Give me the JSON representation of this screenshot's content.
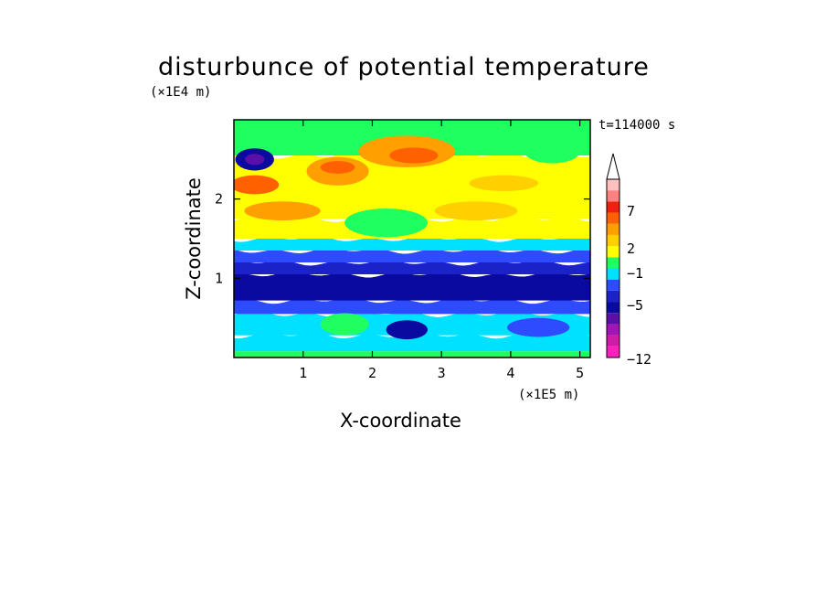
{
  "chart_data": {
    "type": "heatmap",
    "title": "disturbunce of potential temperature",
    "time_label": "t=114000 s",
    "xlabel": "X-coordinate",
    "ylabel": "Z-coordinate",
    "x_unit_label": "(×1E5 m)",
    "y_unit_label": "(×1E4 m)",
    "xlim": [
      0,
      5.15
    ],
    "ylim": [
      0,
      3.0
    ],
    "x_ticks": [
      1,
      2,
      3,
      4,
      5
    ],
    "y_ticks": [
      1,
      2
    ],
    "colorbar": {
      "tick_labels": [
        "7",
        "2",
        "−1",
        "−5",
        "−12"
      ],
      "colors": [
        "#ff1fbf",
        "#d21aa8",
        "#a015b4",
        "#5a0fa8",
        "#0a0aa0",
        "#1a22c8",
        "#2f4bff",
        "#00e0ff",
        "#20ff60",
        "#ffff00",
        "#ffd000",
        "#ffa000",
        "#ff6000",
        "#ee2010",
        "#ff8080",
        "#ffc0c0"
      ],
      "extend": "max"
    },
    "bands": [
      {
        "z0": 0.0,
        "z1": 0.08,
        "level": 8
      },
      {
        "z0": 0.08,
        "z1": 0.28,
        "level": 7
      },
      {
        "z0": 0.28,
        "z1": 0.55,
        "level": 7
      },
      {
        "z0": 0.55,
        "z1": 0.72,
        "level": 6
      },
      {
        "z0": 0.72,
        "z1": 1.05,
        "level": 4
      },
      {
        "z0": 1.05,
        "z1": 1.2,
        "level": 5
      },
      {
        "z0": 1.2,
        "z1": 1.35,
        "level": 6
      },
      {
        "z0": 1.35,
        "z1": 1.5,
        "level": 7
      },
      {
        "z0": 1.5,
        "z1": 1.75,
        "level": 9
      },
      {
        "z0": 1.75,
        "z1": 2.55,
        "level": 9
      },
      {
        "z0": 2.55,
        "z1": 3.0,
        "level": 8
      }
    ],
    "blobs": [
      {
        "x": 0.3,
        "z": 2.5,
        "rx": 0.28,
        "rz": 0.14,
        "level": 4
      },
      {
        "x": 0.3,
        "z": 2.5,
        "rx": 0.14,
        "rz": 0.07,
        "level": 3
      },
      {
        "x": 0.3,
        "z": 2.18,
        "rx": 0.35,
        "rz": 0.12,
        "level": 12
      },
      {
        "x": 0.7,
        "z": 1.85,
        "rx": 0.55,
        "rz": 0.12,
        "level": 11
      },
      {
        "x": 1.5,
        "z": 2.35,
        "rx": 0.45,
        "rz": 0.18,
        "level": 11
      },
      {
        "x": 1.5,
        "z": 2.4,
        "rx": 0.25,
        "rz": 0.08,
        "level": 12
      },
      {
        "x": 2.5,
        "z": 2.6,
        "rx": 0.7,
        "rz": 0.2,
        "level": 11
      },
      {
        "x": 2.6,
        "z": 2.55,
        "rx": 0.35,
        "rz": 0.1,
        "level": 12
      },
      {
        "x": 2.2,
        "z": 1.7,
        "rx": 0.6,
        "rz": 0.18,
        "level": 8
      },
      {
        "x": 3.9,
        "z": 2.2,
        "rx": 0.5,
        "rz": 0.1,
        "level": 10
      },
      {
        "x": 4.6,
        "z": 2.6,
        "rx": 0.4,
        "rz": 0.15,
        "level": 8
      },
      {
        "x": 3.7,
        "z": 2.85,
        "rx": 0.5,
        "rz": 0.1,
        "level": 8
      },
      {
        "x": 0.9,
        "z": 2.85,
        "rx": 0.35,
        "rz": 0.1,
        "level": 8
      },
      {
        "x": 3.5,
        "z": 1.85,
        "rx": 0.6,
        "rz": 0.12,
        "level": 10
      },
      {
        "x": 1.6,
        "z": 0.42,
        "rx": 0.35,
        "rz": 0.14,
        "level": 8
      },
      {
        "x": 2.5,
        "z": 0.35,
        "rx": 0.3,
        "rz": 0.12,
        "level": 4
      },
      {
        "x": 4.4,
        "z": 0.38,
        "rx": 0.45,
        "rz": 0.12,
        "level": 6
      }
    ]
  }
}
